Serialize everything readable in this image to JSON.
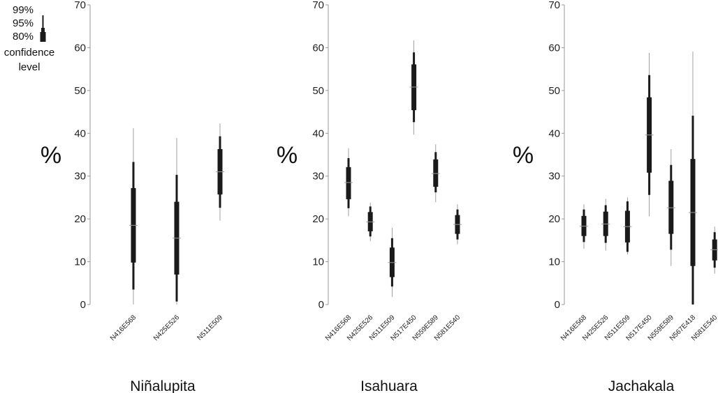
{
  "legend": {
    "levels": [
      "99%",
      "95%",
      "80%"
    ],
    "caption_line1": "confidence",
    "caption_line2": "level"
  },
  "y_axis_label": "%",
  "chart_data": [
    {
      "type": "box",
      "title": "Niñalupita",
      "ylabel": "%",
      "ylim": [
        0,
        70
      ],
      "yticks": [
        0,
        10,
        20,
        30,
        40,
        50,
        60,
        70
      ],
      "categories": [
        "N416E568",
        "N425E526",
        "N511E509"
      ],
      "intervals": [
        {
          "mid": 18.5,
          "ci80": [
            9.8,
            27.2
          ],
          "ci95": [
            3.5,
            33.3
          ],
          "ci99": [
            0.0,
            41.2
          ]
        },
        {
          "mid": 15.5,
          "ci80": [
            7.0,
            24.0
          ],
          "ci95": [
            0.7,
            30.3
          ],
          "ci99": [
            0.0,
            38.9
          ]
        },
        {
          "mid": 31.0,
          "ci80": [
            25.7,
            36.3
          ],
          "ci95": [
            22.6,
            39.3
          ],
          "ci99": [
            19.6,
            42.3
          ]
        }
      ]
    },
    {
      "type": "box",
      "title": "Isahuara",
      "ylabel": "%",
      "ylim": [
        0,
        70
      ],
      "yticks": [
        0,
        10,
        20,
        30,
        40,
        50,
        60,
        70
      ],
      "categories": [
        "N416E568",
        "N425E526",
        "N511E509",
        "N517E450",
        "N559E589",
        "N581E540"
      ],
      "intervals": [
        {
          "mid": 28.5,
          "ci80": [
            24.6,
            32.1
          ],
          "ci95": [
            22.5,
            34.2
          ],
          "ci99": [
            20.6,
            36.5
          ]
        },
        {
          "mid": 19.3,
          "ci80": [
            17.1,
            21.6
          ],
          "ci95": [
            15.9,
            22.9
          ],
          "ci99": [
            14.8,
            23.8
          ]
        },
        {
          "mid": 9.8,
          "ci80": [
            6.4,
            13.3
          ],
          "ci95": [
            4.2,
            15.5
          ],
          "ci99": [
            1.8,
            17.9
          ]
        },
        {
          "mid": 50.8,
          "ci80": [
            45.4,
            56.1
          ],
          "ci95": [
            42.6,
            58.9
          ],
          "ci99": [
            39.7,
            61.7
          ]
        },
        {
          "mid": 30.6,
          "ci80": [
            27.5,
            33.9
          ],
          "ci95": [
            26.2,
            35.6
          ],
          "ci99": [
            23.9,
            37.4
          ]
        },
        {
          "mid": 18.7,
          "ci80": [
            16.5,
            20.9
          ],
          "ci95": [
            15.2,
            22.2
          ],
          "ci99": [
            14.1,
            23.4
          ]
        }
      ]
    },
    {
      "type": "box",
      "title": "Jachakala",
      "ylabel": "%",
      "ylim": [
        0,
        70
      ],
      "yticks": [
        0,
        10,
        20,
        30,
        40,
        50,
        60,
        70
      ],
      "categories": [
        "N416E568",
        "N425E526",
        "N511E509",
        "N517E450",
        "N559E589",
        "N567E418",
        "N581E540"
      ],
      "intervals": [
        {
          "mid": 18.3,
          "ci80": [
            16.0,
            20.7
          ],
          "ci95": [
            14.6,
            22.2
          ],
          "ci99": [
            13.0,
            23.4
          ]
        },
        {
          "mid": 18.8,
          "ci80": [
            16.0,
            21.7
          ],
          "ci95": [
            14.4,
            23.2
          ],
          "ci99": [
            12.6,
            24.7
          ]
        },
        {
          "mid": 18.2,
          "ci80": [
            14.5,
            21.9
          ],
          "ci95": [
            12.3,
            24.1
          ],
          "ci99": [
            11.7,
            25.0
          ]
        },
        {
          "mid": 39.6,
          "ci80": [
            30.8,
            48.4
          ],
          "ci95": [
            25.6,
            53.6
          ],
          "ci99": [
            20.6,
            58.8
          ]
        },
        {
          "mid": 22.6,
          "ci80": [
            16.5,
            28.9
          ],
          "ci95": [
            12.8,
            32.6
          ],
          "ci99": [
            9.0,
            36.3
          ]
        },
        {
          "mid": 21.5,
          "ci80": [
            9.0,
            34.0
          ],
          "ci95": [
            0.0,
            44.1
          ],
          "ci99": [
            0.0,
            59.1
          ]
        },
        {
          "mid": 12.8,
          "ci80": [
            10.3,
            15.2
          ],
          "ci95": [
            8.6,
            16.9
          ],
          "ci99": [
            7.2,
            18.2
          ]
        }
      ]
    }
  ]
}
